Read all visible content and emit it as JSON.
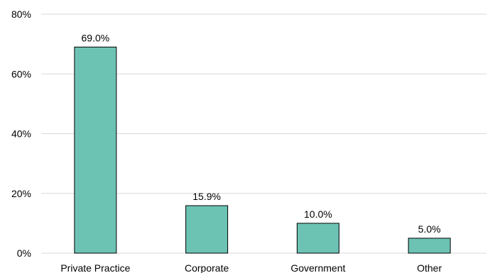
{
  "chart_data": {
    "type": "bar",
    "categories": [
      "Private Practice",
      "Corporate",
      "Government",
      "Other"
    ],
    "values": [
      69.0,
      15.9,
      10.0,
      5.0
    ],
    "value_labels": [
      "69.0%",
      "15.9%",
      "10.0%",
      "5.0%"
    ],
    "ylim": [
      0,
      80
    ],
    "yticks": [
      0,
      20,
      40,
      60,
      80
    ],
    "ytick_labels": [
      "0%",
      "20%",
      "40%",
      "60%",
      "80%"
    ],
    "grid": true,
    "bar_color": "#6cc3b4",
    "title": "",
    "xlabel": "",
    "ylabel": ""
  }
}
